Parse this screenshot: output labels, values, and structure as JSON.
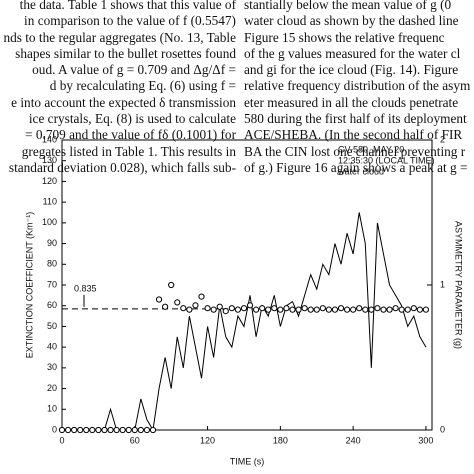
{
  "document": {
    "left_column": [
      "the data. Table 1 shows that this value of",
      "in comparison to the value of f (0.5547)",
      "nds to the regular aggregates (No. 13, Table",
      "shapes similar to the bullet rosettes found",
      "oud. A value of g = 0.709 and Δg/Δf =",
      "d by recalculating Eq. (6) using f =",
      "e into account the expected δ transmission",
      "ice crystals, Eq. (8) is used to calculate",
      "= 0.709 and the value of fδ (0.1001) for",
      "gregates listed in Table 1. This results in",
      "standard deviation 0.028), which falls sub-"
    ],
    "right_column": [
      "stantially below the mean value of g (0",
      "water cloud as shown by the dashed line",
      "Figure 15 shows the relative frequenc",
      "of the g values measured for the water cl",
      "and gi for the ice cloud (Fig. 14). Figure",
      "relative frequency distribution of the asym",
      "eter measured in all the clouds penetrate",
      "580 during the first half of its deployment",
      "ACE/SHEBA. (In the second half of FIR",
      "BA the CIN lost one channel preventing r",
      "of g.) Figure 16 again shows a peak at g ="
    ]
  },
  "chart_data": {
    "type": "line",
    "x_label": "TIME (s)",
    "y_label": "EXTINCTION COEFFICIENT (Km⁻¹)",
    "y2_label": "ASYMMETRY PARAMETER (g)",
    "annotations": [
      "CV-580, MAY 20",
      "12:35:30 (LOCAL TIME)",
      "water cloud"
    ],
    "reference_value": 0.835,
    "xlim": [
      0,
      305
    ],
    "xticks": [
      0,
      60,
      120,
      180,
      240,
      300
    ],
    "ylim": [
      0,
      140
    ],
    "yticks": [
      0,
      10,
      20,
      30,
      40,
      50,
      60,
      70,
      80,
      90,
      100,
      110,
      120,
      130,
      140
    ],
    "y2lim": [
      0,
      2
    ],
    "y2ticks": [
      0,
      1,
      2
    ],
    "x": [
      0,
      5,
      10,
      15,
      20,
      25,
      30,
      35,
      40,
      45,
      50,
      55,
      60,
      65,
      70,
      75,
      80,
      85,
      90,
      95,
      100,
      105,
      110,
      115,
      120,
      125,
      130,
      135,
      140,
      145,
      150,
      155,
      160,
      165,
      170,
      175,
      180,
      185,
      190,
      195,
      200,
      205,
      210,
      215,
      220,
      225,
      230,
      235,
      240,
      245,
      250,
      255,
      260,
      265,
      270,
      275,
      280,
      285,
      290,
      295,
      300
    ],
    "series": [
      {
        "color": "#000000",
        "values": [
          0,
          0,
          0,
          0,
          0,
          0,
          0,
          0,
          10,
          0,
          0,
          0,
          0,
          15,
          5,
          0,
          20,
          35,
          20,
          45,
          30,
          55,
          40,
          25,
          50,
          35,
          60,
          45,
          40,
          55,
          50,
          65,
          45,
          60,
          55,
          65,
          50,
          60,
          62,
          55,
          65,
          75,
          68,
          80,
          75,
          90,
          80,
          95,
          85,
          105,
          90,
          30,
          100,
          85,
          70,
          65,
          60,
          50,
          55,
          45,
          40
        ]
      },
      {
        "color": "#000000",
        "axis": "y2",
        "values": [
          0,
          0,
          0,
          0,
          0,
          0,
          0,
          0,
          0,
          0,
          0,
          0,
          0,
          0,
          0,
          0,
          0.9,
          0.85,
          1.0,
          0.88,
          0.84,
          0.83,
          0.86,
          0.92,
          0.84,
          0.83,
          0.85,
          0.82,
          0.84,
          0.83,
          0.84,
          0.86,
          0.83,
          0.84,
          0.83,
          0.84,
          0.83,
          0.84,
          0.83,
          0.83,
          0.84,
          0.83,
          0.83,
          0.84,
          0.83,
          0.83,
          0.84,
          0.83,
          0.83,
          0.84,
          0.83,
          0.83,
          0.84,
          0.83,
          0.83,
          0.84,
          0.83,
          0.83,
          0.84,
          0.83,
          0.83
        ]
      }
    ]
  }
}
